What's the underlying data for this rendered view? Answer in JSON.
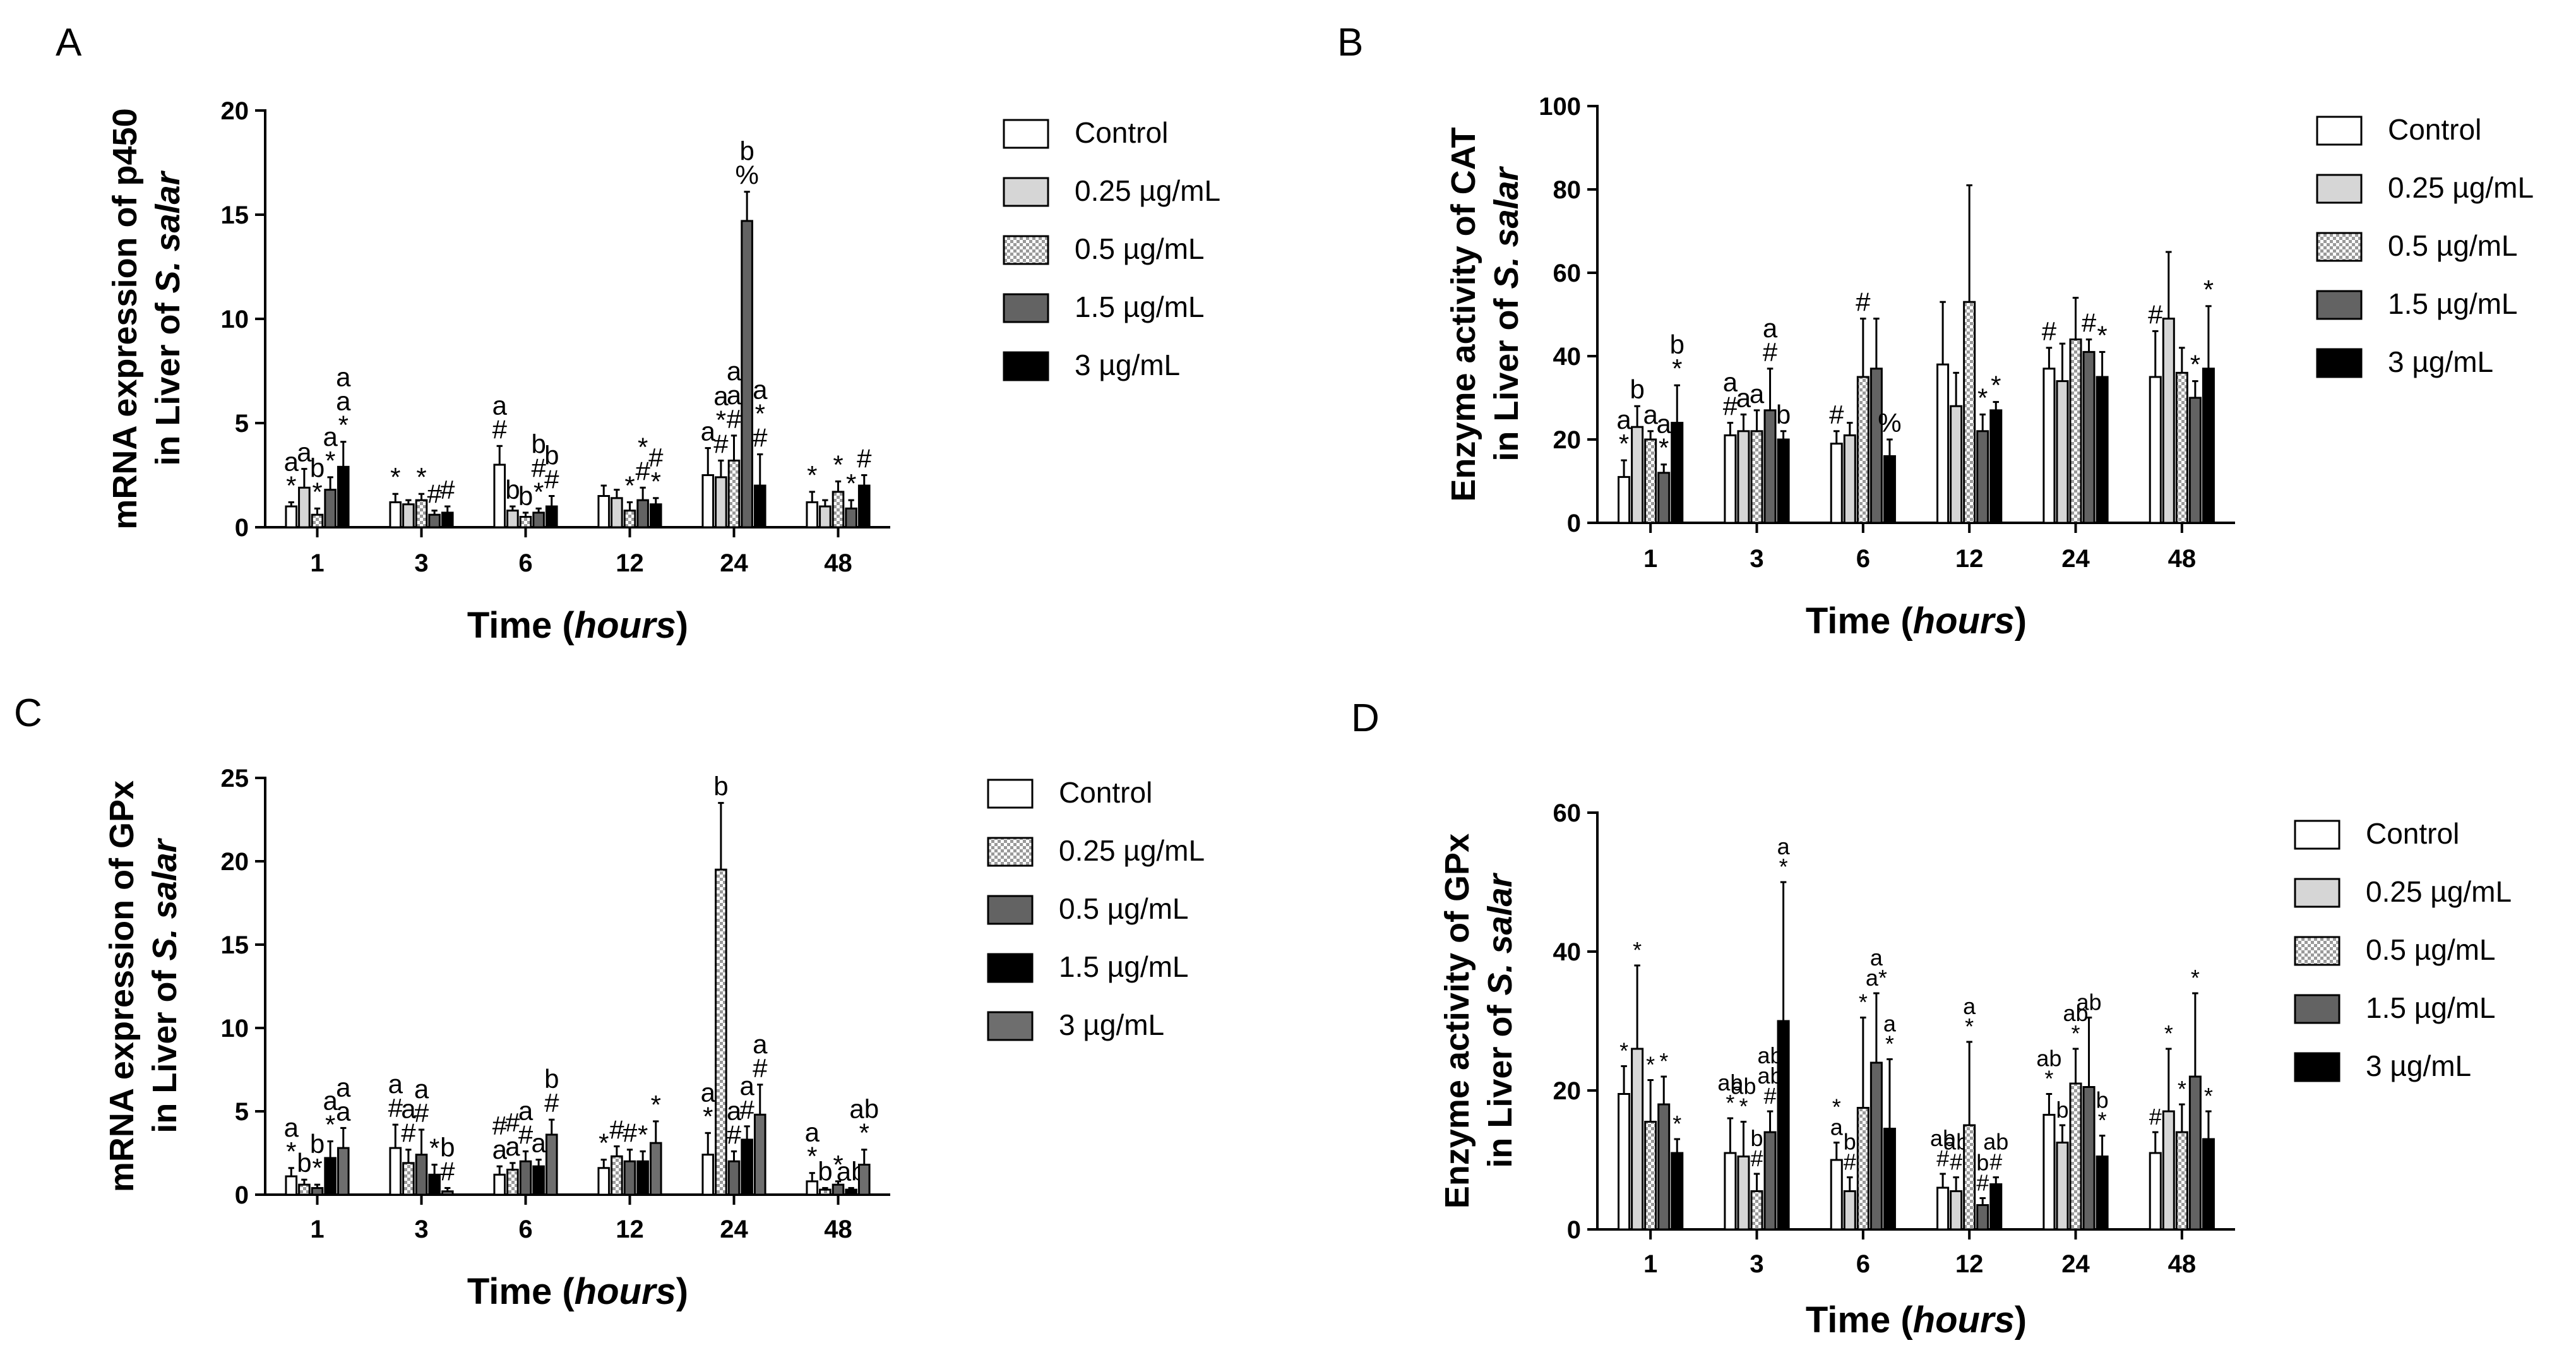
{
  "figure": {
    "panels": [
      "A",
      "B",
      "C",
      "D"
    ]
  },
  "chart_data": [
    {
      "panel": "A",
      "type": "bar",
      "title": "",
      "ylabel": "mRNA expression of p450 in Liver of S. salar",
      "ylabel_line1": "mRNA expression of p450",
      "ylabel_line2_prefix": "in Liver of ",
      "ylabel_line2_italic": "S. salar",
      "xlabel_prefix": "Time (",
      "xlabel_italic": "hours",
      "xlabel_suffix": ")",
      "ylim": [
        0,
        20
      ],
      "yticks": [
        0,
        5,
        10,
        15,
        20
      ],
      "categories": [
        "1",
        "3",
        "6",
        "12",
        "24",
        "48"
      ],
      "series": [
        {
          "name": "Control",
          "pattern": "white",
          "values": [
            1.0,
            1.2,
            3.0,
            1.5,
            2.5,
            1.2
          ],
          "errors": [
            0.2,
            0.4,
            0.9,
            0.5,
            1.3,
            0.5
          ]
        },
        {
          "name": "0.25 µg/mL",
          "pattern": "lightgray",
          "values": [
            1.9,
            1.1,
            0.8,
            1.4,
            2.4,
            1.0
          ],
          "errors": [
            0.9,
            0.2,
            0.2,
            0.4,
            0.8,
            0.3
          ]
        },
        {
          "name": "0.5 µg/mL",
          "pattern": "checker",
          "values": [
            0.6,
            1.3,
            0.5,
            0.8,
            3.2,
            1.7
          ],
          "errors": [
            0.3,
            0.3,
            0.2,
            0.4,
            1.2,
            0.5
          ]
        },
        {
          "name": "1.5 µg/mL",
          "pattern": "darkgray",
          "values": [
            1.8,
            0.6,
            0.7,
            1.3,
            14.7,
            0.9
          ],
          "errors": [
            0.6,
            0.2,
            0.2,
            0.6,
            1.4,
            0.4
          ]
        },
        {
          "name": "3 µg/mL",
          "pattern": "black",
          "values": [
            2.9,
            0.7,
            1.0,
            1.1,
            2.0,
            2.0
          ],
          "errors": [
            1.2,
            0.3,
            0.5,
            0.3,
            1.5,
            0.5
          ]
        }
      ],
      "annotations": [
        [
          "*\na",
          "a",
          "*\nb",
          "*\na",
          "*\na\na"
        ],
        [
          "*",
          "",
          "*",
          "#",
          "#"
        ],
        [
          "#\na",
          "b",
          "b",
          "*\n#\nb",
          "#\nb"
        ],
        [
          "",
          "",
          "*",
          "#\n*",
          "*\n#"
        ],
        [
          "a",
          "#\n*\na",
          "#\na\na",
          "%\nb",
          "#\n*\na"
        ],
        [
          "*",
          "",
          "*",
          "*",
          "#"
        ]
      ]
    },
    {
      "panel": "B",
      "type": "bar",
      "title": "",
      "ylabel": "Enzyme activity of CAT in Liver of S. salar",
      "ylabel_line1": "Enzyme activity of CAT",
      "ylabel_line2_prefix": "in Liver of ",
      "ylabel_line2_italic": "S. salar",
      "xlabel_prefix": "Time (",
      "xlabel_italic": "hours",
      "xlabel_suffix": ")",
      "ylim": [
        0,
        100
      ],
      "yticks": [
        0,
        20,
        40,
        60,
        80,
        100
      ],
      "categories": [
        "1",
        "3",
        "6",
        "12",
        "24",
        "48"
      ],
      "series": [
        {
          "name": "Control",
          "pattern": "white",
          "values": [
            11,
            21,
            19,
            38,
            37,
            35
          ],
          "errors": [
            4,
            3,
            3,
            15,
            5,
            11
          ]
        },
        {
          "name": "0.25 µg/mL",
          "pattern": "lightgray",
          "values": [
            23,
            22,
            21,
            28,
            34,
            49
          ],
          "errors": [
            5,
            4,
            3,
            8,
            9,
            16
          ]
        },
        {
          "name": "0.5 µg/mL",
          "pattern": "checker",
          "values": [
            20,
            22,
            35,
            53,
            44,
            36
          ],
          "errors": [
            2,
            5,
            14,
            28,
            10,
            6
          ]
        },
        {
          "name": "1.5 µg/mL",
          "pattern": "darkgray",
          "values": [
            12,
            27,
            37,
            22,
            41,
            30
          ],
          "errors": [
            2,
            10,
            12,
            4,
            3,
            4
          ]
        },
        {
          "name": "3 µg/mL",
          "pattern": "black",
          "values": [
            24,
            20,
            16,
            27,
            35,
            37
          ],
          "errors": [
            9,
            2,
            4,
            2,
            6,
            15
          ]
        }
      ],
      "annotations": [
        [
          "*\na",
          "b",
          "a",
          "*\na",
          "*\nb"
        ],
        [
          "#\na",
          "a",
          "a",
          "#\na",
          "b"
        ],
        [
          "#",
          "",
          "#",
          "",
          "%"
        ],
        [
          "",
          "",
          "",
          "*",
          "*"
        ],
        [
          "#",
          "",
          "",
          "#",
          "*"
        ],
        [
          "#",
          "",
          "",
          "*",
          "*"
        ]
      ]
    },
    {
      "panel": "C",
      "type": "bar",
      "title": "",
      "ylabel": "mRNA expression of GPx in Liver of S. salar",
      "ylabel_line1": "mRNA expression of GPx",
      "ylabel_line2_prefix": "in Liver of ",
      "ylabel_line2_italic": "S. salar",
      "xlabel_prefix": "Time (",
      "xlabel_italic": "hours",
      "xlabel_suffix": ")",
      "ylim": [
        0,
        25
      ],
      "yticks": [
        0,
        5,
        10,
        15,
        20,
        25
      ],
      "categories": [
        "1",
        "3",
        "6",
        "12",
        "24",
        "48"
      ],
      "series": [
        {
          "name": "Control",
          "pattern": "white",
          "values": [
            1.1,
            2.8,
            1.2,
            1.6,
            2.4,
            0.8
          ],
          "errors": [
            0.5,
            1.4,
            0.5,
            0.5,
            1.3,
            0.5
          ]
        },
        {
          "name": "0.25 µg/mL",
          "pattern": "checker",
          "values": [
            0.6,
            1.9,
            1.5,
            2.3,
            19.5,
            0.3
          ],
          "errors": [
            0.3,
            0.8,
            0.4,
            0.6,
            4.0,
            0.1
          ]
        },
        {
          "name": "0.5 µg/mL",
          "pattern": "darkgray",
          "values": [
            0.4,
            2.4,
            2.0,
            2.0,
            2.0,
            0.6
          ],
          "errors": [
            0.2,
            1.5,
            0.6,
            0.7,
            0.6,
            0.2
          ]
        },
        {
          "name": "1.5 µg/mL",
          "pattern": "black",
          "values": [
            2.2,
            1.2,
            1.7,
            2.0,
            3.3,
            0.3
          ],
          "errors": [
            1.0,
            0.6,
            0.4,
            0.6,
            0.8,
            0.1
          ]
        },
        {
          "name": "3 µg/mL",
          "pattern": "gray",
          "values": [
            2.8,
            0.2,
            3.6,
            3.1,
            4.8,
            1.8
          ],
          "errors": [
            1.2,
            0.2,
            0.9,
            1.3,
            1.8,
            0.9
          ]
        }
      ],
      "annotations": [
        [
          "*\na",
          "b",
          "*\nb",
          "*\na",
          "a\na"
        ],
        [
          "#\na",
          "#\na",
          "#\na",
          "*",
          "#\nb"
        ],
        [
          "a\n#",
          "a\n#",
          "#\na",
          "a",
          "#\nb"
        ],
        [
          "*",
          "#",
          "#",
          "*",
          "*"
        ],
        [
          "*\na",
          "b",
          "#\na",
          "#\na",
          "#\na"
        ],
        [
          "*\na",
          "b",
          "*",
          "ab",
          "*\nab"
        ]
      ]
    },
    {
      "panel": "D",
      "type": "bar",
      "title": "",
      "ylabel": "Enzyme activity of GPx in Liver of S. salar",
      "ylabel_line1": "Enzyme activity of GPx",
      "ylabel_line2_prefix": "in Liver of ",
      "ylabel_line2_italic": "S. salar",
      "xlabel_prefix": "Time (",
      "xlabel_italic": "hours",
      "xlabel_suffix": ")",
      "ylim": [
        0,
        60
      ],
      "yticks": [
        0,
        20,
        40,
        60
      ],
      "categories": [
        "1",
        "3",
        "6",
        "12",
        "24",
        "48"
      ],
      "series": [
        {
          "name": "Control",
          "pattern": "white",
          "values": [
            19.5,
            11,
            10,
            6,
            16.5,
            11
          ],
          "errors": [
            4,
            5,
            2.5,
            2,
            3,
            3
          ]
        },
        {
          "name": "0.25 µg/mL",
          "pattern": "lightgray",
          "values": [
            26,
            10.5,
            5.5,
            5.5,
            12.5,
            17
          ],
          "errors": [
            12,
            5,
            2,
            2,
            2.5,
            9
          ]
        },
        {
          "name": "0.5 µg/mL",
          "pattern": "checker",
          "values": [
            15.5,
            5.5,
            17.5,
            15,
            21,
            14
          ],
          "errors": [
            6,
            2.5,
            13,
            12,
            5,
            4
          ]
        },
        {
          "name": "1.5 µg/mL",
          "pattern": "darkgray",
          "values": [
            18,
            14,
            24,
            3.5,
            20.5,
            22
          ],
          "errors": [
            4,
            3,
            10,
            1,
            10,
            12
          ]
        },
        {
          "name": "3 µg/mL",
          "pattern": "black",
          "values": [
            11,
            30,
            14.5,
            6.5,
            10.5,
            13
          ],
          "errors": [
            2,
            20,
            10,
            1,
            3,
            4
          ]
        }
      ],
      "annotations": [
        [
          "*",
          "*",
          "*",
          "*",
          "*"
        ],
        [
          "*\nab",
          "*\nab",
          "#\nb",
          "#\nab\nab",
          "*\na"
        ],
        [
          "a\n*",
          "#\nb",
          "*",
          "a*\na",
          "*\na"
        ],
        [
          "#\nab",
          "#\nab",
          "*\na",
          "#\nb",
          "#\nab"
        ],
        [
          "*\nab",
          "b",
          "*\nab",
          "ab",
          "*\nb"
        ],
        [
          "#",
          "*",
          "*",
          "*",
          "*"
        ]
      ]
    }
  ]
}
